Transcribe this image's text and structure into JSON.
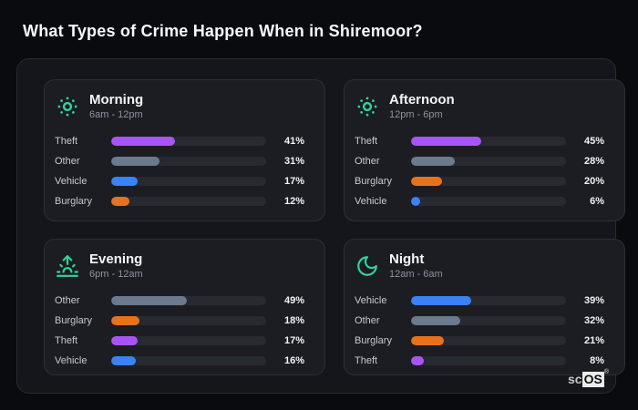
{
  "title": "What Types of Crime Happen When in Shiremoor?",
  "colors": {
    "theft": "#a855f7",
    "other": "#6b7a8c",
    "vehicle": "#3b82f6",
    "burglary": "#e8721c",
    "icon_accent": "#34d399"
  },
  "panels": [
    {
      "title": "Morning",
      "time": "6am - 12pm",
      "icon": "sun-icon",
      "rows": [
        {
          "label": "Theft",
          "value": 41,
          "display": "41%",
          "color": "theft"
        },
        {
          "label": "Other",
          "value": 31,
          "display": "31%",
          "color": "other"
        },
        {
          "label": "Vehicle",
          "value": 17,
          "display": "17%",
          "color": "vehicle"
        },
        {
          "label": "Burglary",
          "value": 12,
          "display": "12%",
          "color": "burglary"
        }
      ]
    },
    {
      "title": "Afternoon",
      "time": "12pm - 6pm",
      "icon": "sun-icon",
      "rows": [
        {
          "label": "Theft",
          "value": 45,
          "display": "45%",
          "color": "theft"
        },
        {
          "label": "Other",
          "value": 28,
          "display": "28%",
          "color": "other"
        },
        {
          "label": "Burglary",
          "value": 20,
          "display": "20%",
          "color": "burglary"
        },
        {
          "label": "Vehicle",
          "value": 6,
          "display": "6%",
          "color": "vehicle"
        }
      ]
    },
    {
      "title": "Evening",
      "time": "6pm - 12am",
      "icon": "sunrise-icon",
      "rows": [
        {
          "label": "Other",
          "value": 49,
          "display": "49%",
          "color": "other"
        },
        {
          "label": "Burglary",
          "value": 18,
          "display": "18%",
          "color": "burglary"
        },
        {
          "label": "Theft",
          "value": 17,
          "display": "17%",
          "color": "theft"
        },
        {
          "label": "Vehicle",
          "value": 16,
          "display": "16%",
          "color": "vehicle"
        }
      ]
    },
    {
      "title": "Night",
      "time": "12am - 6am",
      "icon": "moon-icon",
      "rows": [
        {
          "label": "Vehicle",
          "value": 39,
          "display": "39%",
          "color": "vehicle"
        },
        {
          "label": "Other",
          "value": 32,
          "display": "32%",
          "color": "other"
        },
        {
          "label": "Burglary",
          "value": 21,
          "display": "21%",
          "color": "burglary"
        },
        {
          "label": "Theft",
          "value": 8,
          "display": "8%",
          "color": "theft"
        }
      ]
    }
  ],
  "watermark": {
    "prefix": "sc",
    "suffix": "OS",
    "reg": "®"
  },
  "chart_data": [
    {
      "type": "bar",
      "orientation": "horizontal",
      "title": "Morning",
      "subtitle": "6am - 12pm",
      "categories": [
        "Theft",
        "Other",
        "Vehicle",
        "Burglary"
      ],
      "values": [
        41,
        31,
        17,
        12
      ],
      "unit": "%",
      "xlim": [
        0,
        100
      ],
      "grid": false,
      "legend": false
    },
    {
      "type": "bar",
      "orientation": "horizontal",
      "title": "Afternoon",
      "subtitle": "12pm - 6pm",
      "categories": [
        "Theft",
        "Other",
        "Burglary",
        "Vehicle"
      ],
      "values": [
        45,
        28,
        20,
        6
      ],
      "unit": "%",
      "xlim": [
        0,
        100
      ],
      "grid": false,
      "legend": false
    },
    {
      "type": "bar",
      "orientation": "horizontal",
      "title": "Evening",
      "subtitle": "6pm - 12am",
      "categories": [
        "Other",
        "Burglary",
        "Theft",
        "Vehicle"
      ],
      "values": [
        49,
        18,
        17,
        16
      ],
      "unit": "%",
      "xlim": [
        0,
        100
      ],
      "grid": false,
      "legend": false
    },
    {
      "type": "bar",
      "orientation": "horizontal",
      "title": "Night",
      "subtitle": "12am - 6am",
      "categories": [
        "Vehicle",
        "Other",
        "Burglary",
        "Theft"
      ],
      "values": [
        39,
        32,
        21,
        8
      ],
      "unit": "%",
      "xlim": [
        0,
        100
      ],
      "grid": false,
      "legend": false
    }
  ]
}
